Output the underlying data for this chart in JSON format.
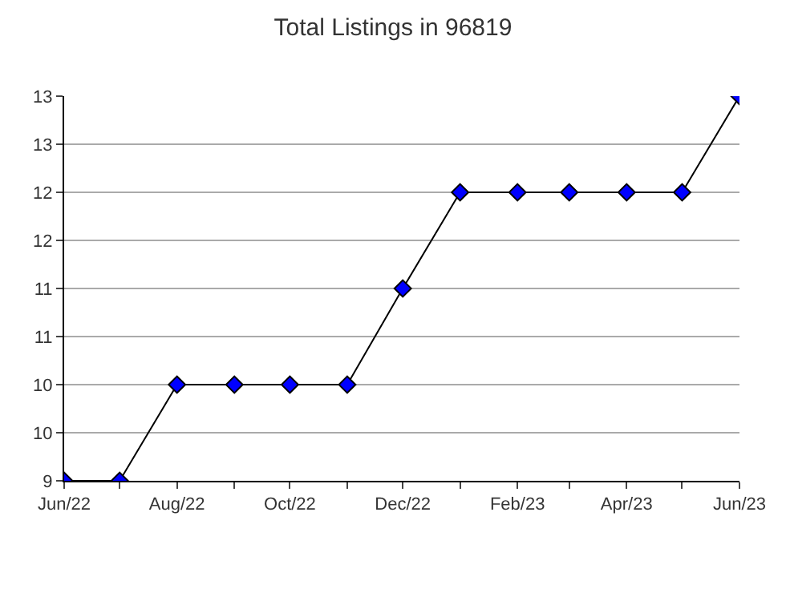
{
  "chart_data": {
    "type": "line",
    "title": "Total Listings in 96819",
    "x": [
      "2022-06",
      "2022-07",
      "2022-08",
      "2022-09",
      "2022-10",
      "2022-11",
      "2022-12",
      "2023-01",
      "2023-02",
      "2023-03",
      "2023-04",
      "2023-05",
      "2023-06"
    ],
    "series": [
      {
        "color": "#0000ff",
        "values": [
          9,
          9,
          10,
          10,
          10,
          10,
          11,
          12,
          12,
          12,
          12,
          12,
          13
        ]
      }
    ],
    "xlim": [
      "2022-06",
      "2023-06"
    ],
    "xticks": [
      {
        "value": "2022-06",
        "label": "Jun/22"
      },
      {
        "value": "2022-07",
        "label": null
      },
      {
        "value": "2022-08",
        "label": "Aug/22"
      },
      {
        "value": "2022-09",
        "label": null
      },
      {
        "value": "2022-10",
        "label": "Oct/22"
      },
      {
        "value": "2022-11",
        "label": null
      },
      {
        "value": "2022-12",
        "label": "Dec/22"
      },
      {
        "value": "2023-01",
        "label": null
      },
      {
        "value": "2023-02",
        "label": "Feb/23"
      },
      {
        "value": "2023-03",
        "label": null
      },
      {
        "value": "2023-04",
        "label": "Apr/23"
      },
      {
        "value": "2023-05",
        "label": null
      },
      {
        "value": "2023-06",
        "label": "Jun/23"
      }
    ],
    "ylim": [
      9,
      13
    ],
    "yticks": [
      9,
      {
        "value": 9.5,
        "label": "10"
      },
      10,
      {
        "value": 10.5,
        "label": "11"
      },
      11,
      {
        "value": 11.5,
        "label": "12"
      },
      12,
      {
        "value": 12.5,
        "label": "13"
      },
      13
    ],
    "grid": "y",
    "legend": false,
    "marker": "diamond",
    "line_style": "solid"
  }
}
